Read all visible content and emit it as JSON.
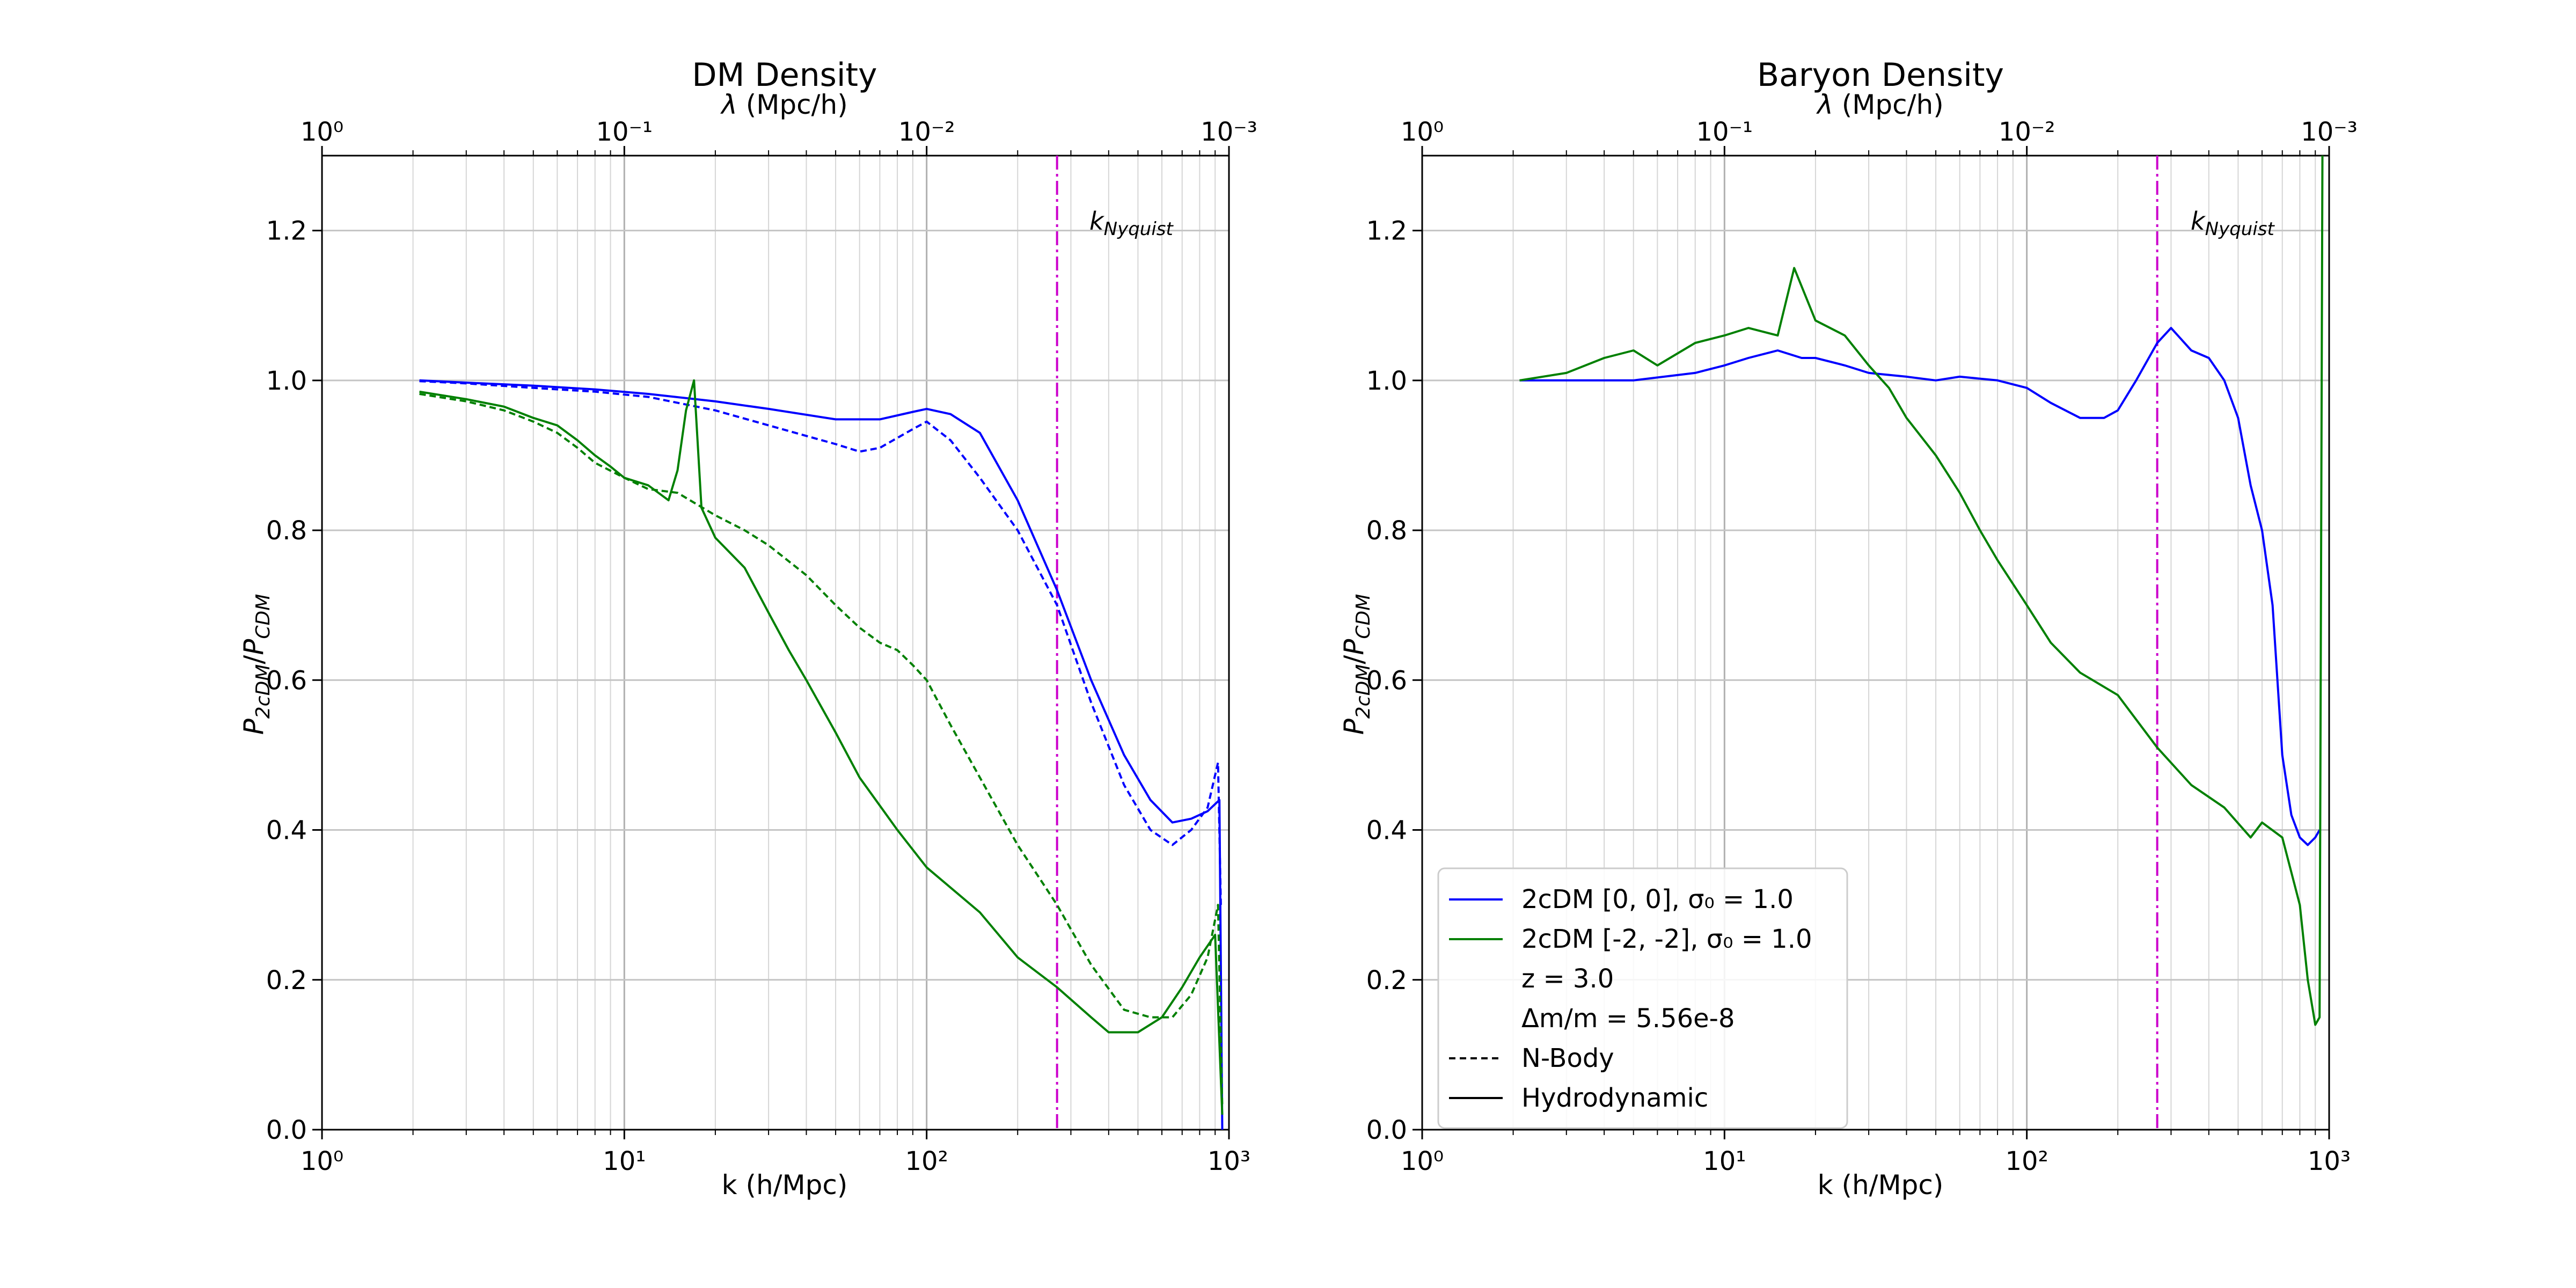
{
  "figure": {
    "legend": {
      "entries": [
        "2cDM [0, 0], σ₀ =  1.0",
        "2cDM [-2, -2], σ₀ =  1.0",
        "z = 3.0",
        "Δm/m = 5.56e-8",
        "N-Body",
        "Hydrodynamic"
      ]
    }
  },
  "chart_data": [
    {
      "type": "line",
      "title": "DM Density",
      "xlabel": "k (h/Mpc)",
      "ylabel": "P₂cDM/PCDM",
      "top_xlabel": "λ (Mpc/h)",
      "x_scale": "log",
      "xlim": [
        1,
        1000
      ],
      "ylim": [
        0,
        1.3
      ],
      "yticks": [
        "0.0",
        "0.2",
        "0.4",
        "0.6",
        "0.8",
        "1.0",
        "1.2"
      ],
      "xtick_labels": [
        "10⁰",
        "10¹",
        "10²",
        "10³"
      ],
      "top_tick_labels": [
        "10⁰",
        "10⁻¹",
        "10⁻²",
        "10⁻³"
      ],
      "grid": true,
      "vline": {
        "x": 270,
        "label": "kNyquist",
        "color": "#cc00cc"
      },
      "series": [
        {
          "name": "2cDM [0, 0], σ₀ =  1.0 (Hydrodynamic)",
          "color": "#0000ff",
          "style": "solid",
          "x": [
            2.1,
            3,
            5,
            8,
            12,
            20,
            30,
            50,
            70,
            90,
            100,
            120,
            150,
            200,
            270,
            350,
            450,
            550,
            650,
            750,
            850,
            930,
            950
          ],
          "y": [
            1.0,
            0.997,
            0.993,
            0.988,
            0.982,
            0.972,
            0.962,
            0.948,
            0.948,
            0.958,
            0.962,
            0.955,
            0.93,
            0.84,
            0.72,
            0.6,
            0.5,
            0.44,
            0.41,
            0.415,
            0.425,
            0.44,
            0.0
          ]
        },
        {
          "name": "2cDM [0, 0], σ₀ =  1.0 (N-Body)",
          "color": "#0000ff",
          "style": "dashed",
          "x": [
            2.1,
            3,
            5,
            8,
            12,
            20,
            30,
            50,
            60,
            70,
            90,
            100,
            120,
            150,
            200,
            270,
            350,
            450,
            550,
            650,
            750,
            850,
            920,
            940
          ],
          "y": [
            0.999,
            0.996,
            0.99,
            0.985,
            0.978,
            0.96,
            0.94,
            0.915,
            0.905,
            0.91,
            0.935,
            0.945,
            0.92,
            0.87,
            0.8,
            0.7,
            0.57,
            0.46,
            0.4,
            0.38,
            0.4,
            0.43,
            0.49,
            0.3
          ]
        },
        {
          "name": "2cDM [-2, -2], σ₀ =  1.0 (Hydrodynamic)",
          "color": "#008000",
          "style": "solid",
          "x": [
            2.1,
            3,
            4,
            5,
            6,
            7,
            8,
            9,
            10,
            12,
            14,
            15,
            16,
            17,
            18,
            20,
            25,
            30,
            35,
            40,
            50,
            60,
            80,
            100,
            150,
            200,
            270,
            350,
            400,
            500,
            600,
            700,
            800,
            900,
            950
          ],
          "y": [
            0.985,
            0.975,
            0.965,
            0.95,
            0.94,
            0.92,
            0.9,
            0.885,
            0.87,
            0.86,
            0.84,
            0.88,
            0.96,
            1.0,
            0.83,
            0.79,
            0.75,
            0.69,
            0.64,
            0.6,
            0.53,
            0.47,
            0.4,
            0.35,
            0.29,
            0.23,
            0.19,
            0.15,
            0.13,
            0.13,
            0.15,
            0.19,
            0.23,
            0.26,
            0.02
          ]
        },
        {
          "name": "2cDM [-2, -2], σ₀ =  1.0 (N-Body)",
          "color": "#008000",
          "style": "dashed",
          "x": [
            2.1,
            3,
            4,
            5,
            6,
            7,
            8,
            10,
            12,
            15,
            20,
            25,
            30,
            40,
            50,
            60,
            70,
            80,
            90,
            100,
            120,
            150,
            200,
            270,
            350,
            450,
            550,
            650,
            750,
            850,
            920,
            950
          ],
          "y": [
            0.982,
            0.972,
            0.96,
            0.945,
            0.93,
            0.91,
            0.89,
            0.87,
            0.855,
            0.85,
            0.82,
            0.8,
            0.78,
            0.74,
            0.7,
            0.67,
            0.65,
            0.64,
            0.62,
            0.6,
            0.54,
            0.47,
            0.38,
            0.3,
            0.22,
            0.16,
            0.15,
            0.15,
            0.18,
            0.23,
            0.3,
            0.03
          ]
        }
      ]
    },
    {
      "type": "line",
      "title": "Baryon Density",
      "xlabel": "k (h/Mpc)",
      "ylabel": "P₂cDM/PCDM",
      "top_xlabel": "λ (Mpc/h)",
      "x_scale": "log",
      "xlim": [
        1,
        1000
      ],
      "ylim": [
        0,
        1.3
      ],
      "yticks": [
        "0.0",
        "0.2",
        "0.4",
        "0.6",
        "0.8",
        "1.0",
        "1.2"
      ],
      "xtick_labels": [
        "10⁰",
        "10¹",
        "10²",
        "10³"
      ],
      "top_tick_labels": [
        "10⁰",
        "10⁻¹",
        "10⁻²",
        "10⁻³"
      ],
      "grid": true,
      "vline": {
        "x": 270,
        "label": "kNyquist",
        "color": "#cc00cc"
      },
      "legend_position": "lower-left",
      "series": [
        {
          "name": "2cDM [0, 0], σ₀ =  1.0",
          "color": "#0000ff",
          "style": "solid",
          "x": [
            2.1,
            3,
            5,
            8,
            10,
            12,
            15,
            18,
            20,
            25,
            30,
            40,
            50,
            60,
            80,
            100,
            120,
            150,
            180,
            200,
            230,
            270,
            300,
            350,
            400,
            450,
            500,
            550,
            600,
            650,
            700,
            750,
            800,
            850,
            900,
            930
          ],
          "y": [
            1.0,
            1.0,
            1.0,
            1.01,
            1.02,
            1.03,
            1.04,
            1.03,
            1.03,
            1.02,
            1.01,
            1.005,
            1.0,
            1.005,
            1.0,
            0.99,
            0.97,
            0.95,
            0.95,
            0.96,
            1.0,
            1.05,
            1.07,
            1.04,
            1.03,
            1.0,
            0.95,
            0.86,
            0.8,
            0.7,
            0.5,
            0.42,
            0.39,
            0.38,
            0.39,
            0.4
          ]
        },
        {
          "name": "2cDM [-2, -2], σ₀ =  1.0",
          "color": "#008000",
          "style": "solid",
          "x": [
            2.1,
            3,
            4,
            5,
            6,
            8,
            10,
            12,
            15,
            17,
            20,
            25,
            30,
            35,
            40,
            50,
            60,
            70,
            80,
            100,
            120,
            150,
            200,
            270,
            350,
            450,
            550,
            600,
            700,
            800,
            850,
            900,
            930,
            950
          ],
          "y": [
            1.0,
            1.01,
            1.03,
            1.04,
            1.02,
            1.05,
            1.06,
            1.07,
            1.06,
            1.15,
            1.08,
            1.06,
            1.02,
            0.99,
            0.95,
            0.9,
            0.85,
            0.8,
            0.76,
            0.7,
            0.65,
            0.61,
            0.58,
            0.51,
            0.46,
            0.43,
            0.39,
            0.41,
            0.39,
            0.3,
            0.2,
            0.14,
            0.15,
            1.3
          ]
        }
      ]
    }
  ]
}
